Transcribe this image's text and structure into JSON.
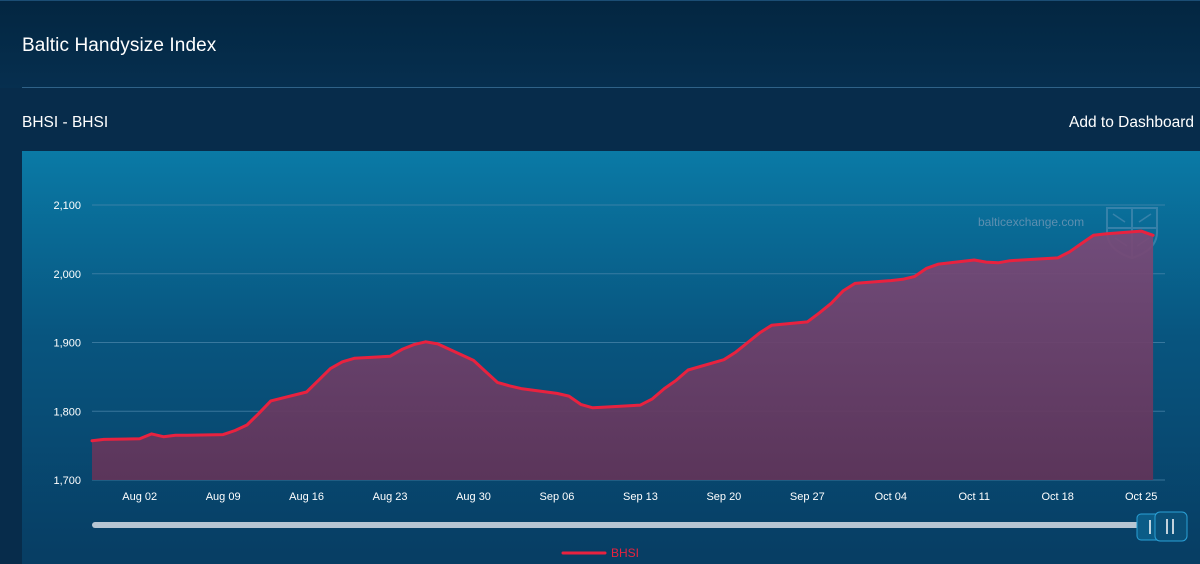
{
  "page": {
    "title": "Baltic Handysize Index",
    "section_title": "BHSI - BHSI",
    "add_to_dashboard": "Add to Dashboard",
    "watermark": "balticexchange.com"
  },
  "colors": {
    "line": "#e8223f",
    "area_top": "#7a4a78",
    "area_bottom": "#5f3459",
    "grid": "#4d88ad"
  },
  "chart_data": {
    "type": "area",
    "title": "",
    "xlabel": "",
    "ylabel": "",
    "ylim": [
      1700,
      2100
    ],
    "yticks": [
      1700,
      1800,
      1900,
      2000,
      2100
    ],
    "ytick_labels": [
      "1,700",
      "1,800",
      "1,900",
      "2,000",
      "2,100"
    ],
    "xlim": [
      "2021-07-29",
      "2021-10-27"
    ],
    "xtick_labels": [
      "Aug 02",
      "Aug 09",
      "Aug 16",
      "Aug 23",
      "Aug 30",
      "Sep 06",
      "Sep 13",
      "Sep 20",
      "Sep 27",
      "Oct 04",
      "Oct 11",
      "Oct 18",
      "Oct 25"
    ],
    "xticks": [
      "2021-08-02",
      "2021-08-09",
      "2021-08-16",
      "2021-08-23",
      "2021-08-30",
      "2021-09-06",
      "2021-09-13",
      "2021-09-20",
      "2021-09-27",
      "2021-10-04",
      "2021-10-11",
      "2021-10-18",
      "2021-10-25"
    ],
    "grid": true,
    "legend": "bottom-center",
    "series": [
      {
        "name": "BHSI",
        "x": [
          "2021-07-29",
          "2021-07-30",
          "2021-08-02",
          "2021-08-03",
          "2021-08-04",
          "2021-08-05",
          "2021-08-06",
          "2021-08-09",
          "2021-08-10",
          "2021-08-11",
          "2021-08-12",
          "2021-08-13",
          "2021-08-16",
          "2021-08-17",
          "2021-08-18",
          "2021-08-19",
          "2021-08-20",
          "2021-08-23",
          "2021-08-24",
          "2021-08-25",
          "2021-08-26",
          "2021-08-27",
          "2021-08-30",
          "2021-08-31",
          "2021-09-01",
          "2021-09-02",
          "2021-09-03",
          "2021-09-06",
          "2021-09-07",
          "2021-09-08",
          "2021-09-09",
          "2021-09-10",
          "2021-09-13",
          "2021-09-14",
          "2021-09-15",
          "2021-09-16",
          "2021-09-17",
          "2021-09-20",
          "2021-09-21",
          "2021-09-22",
          "2021-09-23",
          "2021-09-24",
          "2021-09-27",
          "2021-09-28",
          "2021-09-29",
          "2021-09-30",
          "2021-10-01",
          "2021-10-04",
          "2021-10-05",
          "2021-10-06",
          "2021-10-07",
          "2021-10-08",
          "2021-10-11",
          "2021-10-12",
          "2021-10-13",
          "2021-10-14",
          "2021-10-15",
          "2021-10-18",
          "2021-10-19",
          "2021-10-20",
          "2021-10-21",
          "2021-10-22",
          "2021-10-25",
          "2021-10-26"
        ],
        "values": [
          1757,
          1759,
          1760,
          1767,
          1763,
          1765,
          1765,
          1766,
          1772,
          1780,
          1797,
          1815,
          1828,
          1845,
          1862,
          1872,
          1877,
          1880,
          1890,
          1897,
          1901,
          1898,
          1874,
          1858,
          1842,
          1837,
          1833,
          1826,
          1822,
          1810,
          1805,
          1806,
          1809,
          1818,
          1833,
          1845,
          1860,
          1875,
          1886,
          1900,
          1914,
          1925,
          1930,
          1943,
          1957,
          1975,
          1986,
          1990,
          1992,
          1996,
          2008,
          2014,
          2020,
          2017,
          2016,
          2019,
          2020,
          2023,
          2032,
          2044,
          2056,
          2058,
          2062,
          2056
        ]
      }
    ]
  }
}
